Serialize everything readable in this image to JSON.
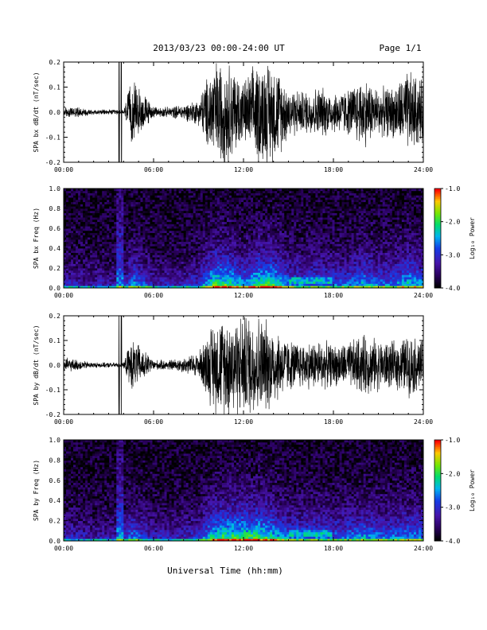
{
  "header": {
    "title": "2013/03/23  00:00-24:00 UT",
    "page": "Page 1/1"
  },
  "x_axis_title": "Universal Time (hh:mm)",
  "chart_data": [
    {
      "type": "line",
      "ylabel": "SPA bx dB/dt (nT/sec)",
      "xlabel": "Universal Time (hh:mm)",
      "x_ticks": [
        "00:00",
        "06:00",
        "12:00",
        "18:00",
        "24:00"
      ],
      "y_ticks": [
        "-0.2",
        "-0.1",
        "0.0",
        "0.1",
        "0.2"
      ],
      "xlim": [
        0,
        24
      ],
      "ylim": [
        -0.2,
        0.2
      ],
      "series": [
        {
          "color": "#000000",
          "envelope_hours": [
            0,
            1,
            2,
            3,
            4,
            4.5,
            5,
            6,
            7,
            8,
            9,
            10,
            11,
            12,
            13,
            14,
            15,
            16,
            17,
            18,
            19,
            20,
            21,
            22,
            23,
            24
          ],
          "envelope_amplitude": [
            0.02,
            0.02,
            0.01,
            0.01,
            0.01,
            0.12,
            0.1,
            0.02,
            0.02,
            0.03,
            0.05,
            0.2,
            0.2,
            0.12,
            0.2,
            0.2,
            0.1,
            0.08,
            0.1,
            0.08,
            0.09,
            0.14,
            0.09,
            0.1,
            0.16,
            0.12
          ]
        }
      ]
    },
    {
      "type": "heatmap",
      "ylabel": "SPA bx Freq (Hz)",
      "xlabel": "Universal Time (hh:mm)",
      "x_ticks": [
        "00:00",
        "06:00",
        "12:00",
        "18:00",
        "24:00"
      ],
      "y_ticks": [
        "0.0",
        "0.2",
        "0.4",
        "0.6",
        "0.8",
        "1.0"
      ],
      "xlim": [
        0,
        24
      ],
      "ylim": [
        0,
        1.0
      ],
      "colorbar": {
        "label": "Log₁₀ Power",
        "ticks": [
          "-1.0",
          "-2.0",
          "-3.0",
          "-4.0"
        ],
        "range": [
          -4.0,
          -1.0
        ]
      }
    },
    {
      "type": "line",
      "ylabel": "SPA by dB/dt (nT/sec)",
      "xlabel": "Universal Time (hh:mm)",
      "x_ticks": [
        "00:00",
        "06:00",
        "12:00",
        "18:00",
        "24:00"
      ],
      "y_ticks": [
        "-0.2",
        "-0.1",
        "0.0",
        "0.1",
        "0.2"
      ],
      "xlim": [
        0,
        24
      ],
      "ylim": [
        -0.2,
        0.2
      ],
      "series": [
        {
          "color": "#000000",
          "envelope_hours": [
            0,
            1,
            2,
            3,
            4,
            4.5,
            5,
            6,
            7,
            8,
            9,
            10,
            11,
            12,
            13,
            14,
            15,
            16,
            17,
            18,
            19,
            20,
            21,
            22,
            23,
            24
          ],
          "envelope_amplitude": [
            0.03,
            0.02,
            0.01,
            0.01,
            0.01,
            0.1,
            0.08,
            0.02,
            0.02,
            0.03,
            0.05,
            0.18,
            0.2,
            0.2,
            0.2,
            0.16,
            0.1,
            0.09,
            0.1,
            0.08,
            0.09,
            0.12,
            0.1,
            0.09,
            0.12,
            0.1
          ]
        }
      ]
    },
    {
      "type": "heatmap",
      "ylabel": "SPA by Freq (Hz)",
      "xlabel": "Universal Time (hh:mm)",
      "x_ticks": [
        "00:00",
        "06:00",
        "12:00",
        "18:00",
        "24:00"
      ],
      "y_ticks": [
        "0.0",
        "0.2",
        "0.4",
        "0.6",
        "0.8",
        "1.0"
      ],
      "xlim": [
        0,
        24
      ],
      "ylim": [
        0,
        1.0
      ],
      "colorbar": {
        "label": "Log₁₀ Power",
        "ticks": [
          "-1.0",
          "-2.0",
          "-3.0",
          "-4.0"
        ],
        "range": [
          -4.0,
          -1.0
        ]
      }
    }
  ]
}
